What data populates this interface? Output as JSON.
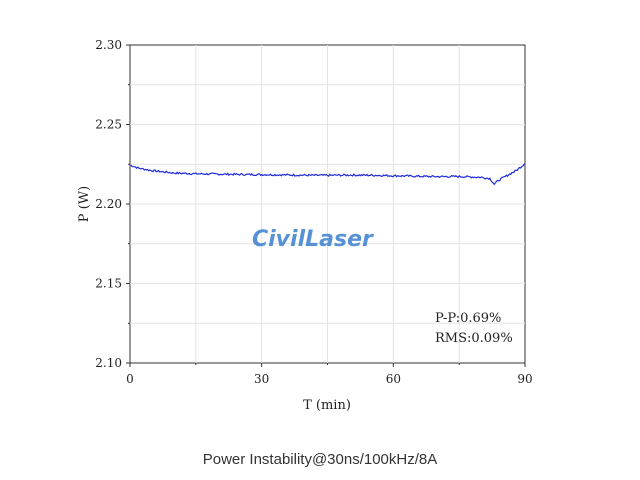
{
  "chart_data": {
    "type": "line",
    "title": "",
    "xlabel": "T (min)",
    "ylabel": "P (W)",
    "xlim": [
      0,
      90
    ],
    "ylim": [
      2.1,
      2.3
    ],
    "x_ticks": [
      0,
      30,
      60,
      90
    ],
    "y_ticks": [
      "2.10",
      "2.15",
      "2.20",
      "2.25",
      "2.30"
    ],
    "grid": true,
    "series": [
      {
        "color": "#1f2bd6",
        "x": [
          0,
          2,
          5,
          10,
          15,
          20,
          25,
          30,
          35,
          40,
          45,
          50,
          55,
          60,
          65,
          70,
          75,
          80,
          82,
          83,
          84,
          86,
          88,
          90
        ],
        "y": [
          2.2245,
          2.2225,
          2.221,
          2.2195,
          2.219,
          2.2188,
          2.2186,
          2.2185,
          2.2183,
          2.2181,
          2.218,
          2.2182,
          2.2181,
          2.2178,
          2.2175,
          2.2172,
          2.2173,
          2.2168,
          2.216,
          2.2125,
          2.215,
          2.218,
          2.221,
          2.2255
        ]
      }
    ],
    "annotations": [
      "P-P:0.69%",
      "RMS:0.09%"
    ]
  },
  "watermark": "CivilLaser",
  "caption": "Power Instability@30ns/100kHz/8A"
}
